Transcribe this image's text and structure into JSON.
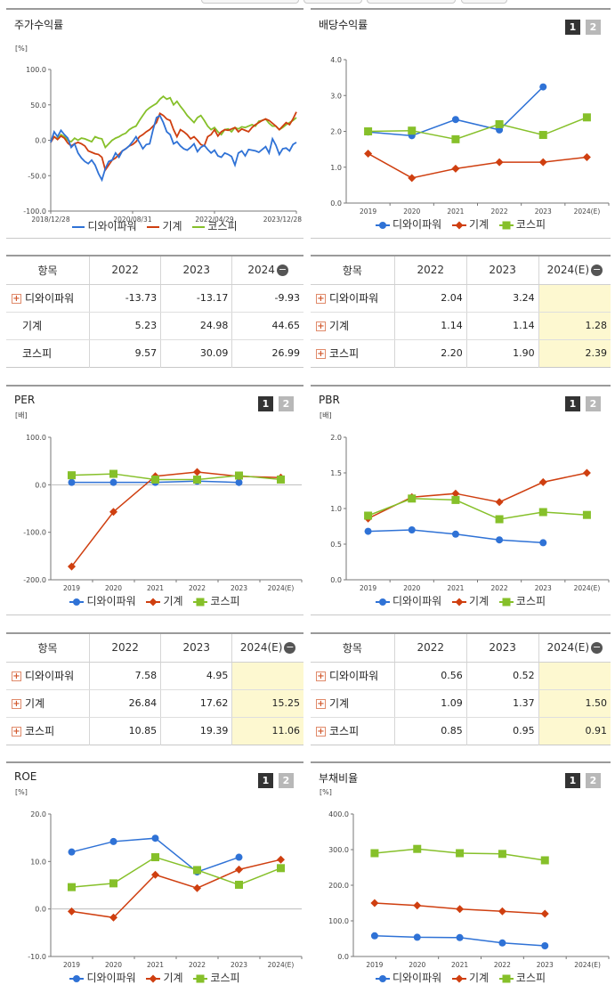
{
  "colors": {
    "company": "#2f72d6",
    "machinery": "#cf3f10",
    "kospi": "#86c02a"
  },
  "legend_labels": [
    "디와이파워",
    "기계",
    "코스피"
  ],
  "badges": [
    "1",
    "2"
  ],
  "stock_return": {
    "title": "주가수익률",
    "unit": "[%]",
    "chart_data": {
      "type": "line",
      "ylim": [
        -100,
        100
      ],
      "y_ticks": [
        "100.0",
        "50.0",
        "0.0",
        "-50.0",
        "-100.0"
      ],
      "x_ticks": [
        "2018/12/28",
        "2020/08/31",
        "2022/04/29",
        "2023/12/28"
      ],
      "series": [
        {
          "name": "디와이파워",
          "values": [
            -3,
            12,
            5,
            14,
            8,
            3,
            -10,
            -5,
            -18,
            -25,
            -30,
            -33,
            -28,
            -35,
            -47,
            -56,
            -40,
            -30,
            -28,
            -18,
            -24,
            -15,
            -12,
            -8,
            -2,
            5,
            -3,
            -12,
            -6,
            -5,
            15,
            32,
            35,
            25,
            12,
            8,
            -5,
            -2,
            -8,
            -12,
            -14,
            -10,
            -5,
            -16,
            -10,
            -7,
            -13,
            -18,
            -14,
            -22,
            -24,
            -18,
            -20,
            -23,
            -35,
            -18,
            -15,
            -22,
            -13,
            -14,
            -15,
            -17,
            -13,
            -9,
            -18,
            2,
            -7,
            -20,
            -12,
            -11,
            -15,
            -6,
            -3
          ]
        },
        {
          "name": "기계",
          "values": [
            -3,
            5,
            1,
            6,
            3,
            -4,
            -8,
            -5,
            -3,
            -5,
            -8,
            -15,
            -17,
            -19,
            -20,
            -24,
            -42,
            -35,
            -28,
            -25,
            -20,
            -15,
            -12,
            -8,
            -6,
            -2,
            5,
            8,
            12,
            15,
            20,
            25,
            38,
            35,
            30,
            28,
            15,
            5,
            15,
            12,
            8,
            2,
            5,
            0,
            -6,
            -8,
            5,
            8,
            15,
            6,
            12,
            15,
            14,
            16,
            18,
            12,
            16,
            14,
            12,
            18,
            22,
            25,
            28,
            30,
            28,
            24,
            20,
            15,
            20,
            25,
            22,
            30,
            40
          ]
        },
        {
          "name": "코스피",
          "values": [
            -2,
            5,
            2,
            8,
            5,
            0,
            -2,
            3,
            0,
            3,
            2,
            0,
            -2,
            5,
            3,
            2,
            -10,
            -5,
            0,
            3,
            5,
            8,
            10,
            15,
            18,
            20,
            28,
            35,
            42,
            46,
            49,
            52,
            58,
            62,
            58,
            60,
            50,
            55,
            48,
            42,
            35,
            30,
            25,
            32,
            35,
            28,
            20,
            15,
            18,
            12,
            8,
            15,
            16,
            12,
            18,
            16,
            19,
            18,
            20,
            22,
            20,
            27,
            28,
            30,
            24,
            20,
            20,
            15,
            18,
            22,
            25,
            28,
            32
          ]
        }
      ]
    }
  },
  "dividend": {
    "title": "배당수익률",
    "unit": "",
    "chart_data": {
      "type": "line",
      "ylim": [
        0,
        4
      ],
      "y_ticks": [
        "4.0",
        "3.0",
        "2.0",
        "1.0",
        "0.0"
      ],
      "categories": [
        "2019",
        "2020",
        "2021",
        "2022",
        "2023",
        "2024(E)"
      ],
      "series": [
        {
          "name": "디와이파워",
          "values": [
            1.98,
            1.88,
            2.33,
            2.04,
            3.24,
            null
          ]
        },
        {
          "name": "기계",
          "values": [
            1.38,
            0.7,
            0.96,
            1.14,
            1.14,
            1.28
          ]
        },
        {
          "name": "코스피",
          "values": [
            2.0,
            2.02,
            1.78,
            2.2,
            1.9,
            2.39
          ]
        }
      ]
    }
  },
  "table1": {
    "header": [
      "항목",
      "2022",
      "2023",
      "2024"
    ],
    "rows": [
      {
        "name": "디와이파워",
        "plus": true,
        "values": [
          "-13.73",
          "-13.17",
          "-9.93"
        ],
        "hl": false
      },
      {
        "name": "기계",
        "plus": false,
        "values": [
          "5.23",
          "24.98",
          "44.65"
        ],
        "hl": false
      },
      {
        "name": "코스피",
        "plus": false,
        "values": [
          "9.57",
          "30.09",
          "26.99"
        ],
        "hl": false
      }
    ]
  },
  "table2": {
    "header": [
      "항목",
      "2022",
      "2023",
      "2024(E)"
    ],
    "rows": [
      {
        "name": "디와이파워",
        "plus": true,
        "values": [
          "2.04",
          "3.24",
          ""
        ],
        "hl": true
      },
      {
        "name": "기계",
        "plus": true,
        "values": [
          "1.14",
          "1.14",
          "1.28"
        ],
        "hl": true
      },
      {
        "name": "코스피",
        "plus": true,
        "values": [
          "2.20",
          "1.90",
          "2.39"
        ],
        "hl": true
      }
    ]
  },
  "per": {
    "title": "PER",
    "unit": "[배]",
    "chart_data": {
      "type": "line",
      "ylim": [
        -200,
        100
      ],
      "y_ticks": [
        "100.0",
        "0.0",
        "-100.0",
        "-200.0"
      ],
      "categories": [
        "2019",
        "2020",
        "2021",
        "2022",
        "2023",
        "2024(E)"
      ],
      "series": [
        {
          "name": "디와이파워",
          "values": [
            5,
            5,
            5,
            7.58,
            4.95,
            null
          ]
        },
        {
          "name": "기계",
          "values": [
            -172,
            -57,
            18,
            26.84,
            17.62,
            15.25
          ]
        },
        {
          "name": "코스피",
          "values": [
            20,
            23,
            11,
            10.85,
            19.39,
            11.06
          ]
        }
      ]
    }
  },
  "pbr": {
    "title": "PBR",
    "unit": "[배]",
    "chart_data": {
      "type": "line",
      "ylim": [
        0,
        2
      ],
      "y_ticks": [
        "2.0",
        "1.5",
        "1.0",
        "0.5",
        "0.0"
      ],
      "categories": [
        "2019",
        "2020",
        "2021",
        "2022",
        "2023",
        "2024(E)"
      ],
      "series": [
        {
          "name": "디와이파워",
          "values": [
            0.68,
            0.7,
            0.64,
            0.56,
            0.52,
            null
          ]
        },
        {
          "name": "기계",
          "values": [
            0.86,
            1.16,
            1.21,
            1.09,
            1.37,
            1.5
          ]
        },
        {
          "name": "코스피",
          "values": [
            0.9,
            1.14,
            1.12,
            0.85,
            0.95,
            0.91
          ]
        }
      ]
    }
  },
  "table3": {
    "header": [
      "항목",
      "2022",
      "2023",
      "2024(E)"
    ],
    "rows": [
      {
        "name": "디와이파워",
        "plus": true,
        "values": [
          "7.58",
          "4.95",
          ""
        ],
        "hl": true
      },
      {
        "name": "기계",
        "plus": true,
        "values": [
          "26.84",
          "17.62",
          "15.25"
        ],
        "hl": true
      },
      {
        "name": "코스피",
        "plus": true,
        "values": [
          "10.85",
          "19.39",
          "11.06"
        ],
        "hl": true
      }
    ]
  },
  "table4": {
    "header": [
      "항목",
      "2022",
      "2023",
      "2024(E)"
    ],
    "rows": [
      {
        "name": "디와이파워",
        "plus": true,
        "values": [
          "0.56",
          "0.52",
          ""
        ],
        "hl": true
      },
      {
        "name": "기계",
        "plus": true,
        "values": [
          "1.09",
          "1.37",
          "1.50"
        ],
        "hl": true
      },
      {
        "name": "코스피",
        "plus": true,
        "values": [
          "0.85",
          "0.95",
          "0.91"
        ],
        "hl": true
      }
    ]
  },
  "roe": {
    "title": "ROE",
    "unit": "[%]",
    "chart_data": {
      "type": "line",
      "ylim": [
        -10,
        20
      ],
      "y_ticks": [
        "20.0",
        "10.0",
        "0.0",
        "-10.0"
      ],
      "categories": [
        "2019",
        "2020",
        "2021",
        "2022",
        "2023",
        "2024(E)"
      ],
      "series": [
        {
          "name": "디와이파워",
          "values": [
            12.0,
            14.2,
            14.9,
            7.8,
            10.9,
            null
          ]
        },
        {
          "name": "기계",
          "values": [
            -0.5,
            -1.8,
            7.2,
            4.4,
            8.3,
            10.4
          ]
        },
        {
          "name": "코스피",
          "values": [
            4.6,
            5.4,
            10.9,
            8.2,
            5.1,
            8.6
          ]
        }
      ]
    }
  },
  "debt": {
    "title": "부채비율",
    "unit": "[%]",
    "chart_data": {
      "type": "line",
      "ylim": [
        0,
        400
      ],
      "y_ticks": [
        "400.0",
        "300.0",
        "200.0",
        "100.0",
        "0.0"
      ],
      "categories": [
        "2019",
        "2020",
        "2021",
        "2022",
        "2023",
        "2024(E)"
      ],
      "series": [
        {
          "name": "디와이파워",
          "values": [
            58,
            54,
            53,
            38,
            30,
            null
          ]
        },
        {
          "name": "기계",
          "values": [
            150,
            143,
            133,
            127,
            120,
            null
          ]
        },
        {
          "name": "코스피",
          "values": [
            290,
            302,
            290,
            288,
            270,
            null
          ]
        }
      ]
    }
  }
}
